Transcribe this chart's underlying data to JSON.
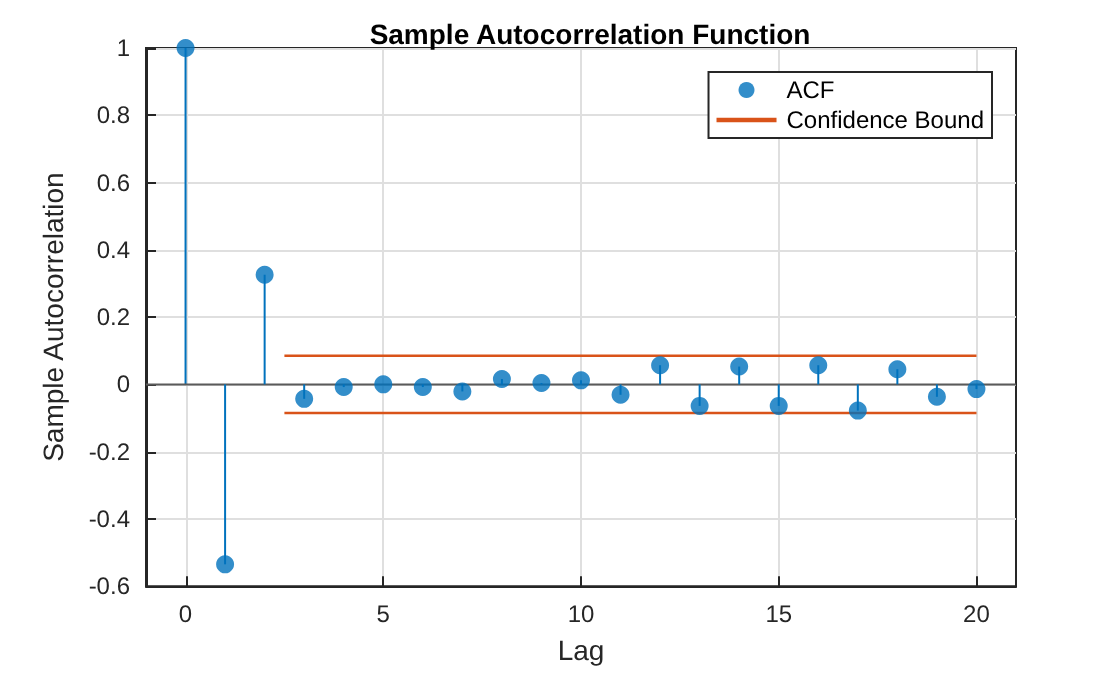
{
  "chart_data": {
    "type": "lollipop",
    "title": "Sample Autocorrelation Function",
    "xlabel": "Lag",
    "ylabel": "Sample Autocorrelation",
    "xlim": [
      -1,
      21
    ],
    "xticks": [
      0,
      5,
      10,
      15,
      20
    ],
    "ylim": [
      -0.6,
      1
    ],
    "yticks": [
      -0.6,
      -0.4,
      -0.2,
      0,
      0.2,
      0.4,
      0.6,
      0.8,
      1
    ],
    "grid": true,
    "legend": "top right",
    "marker": "circle",
    "series": [
      {
        "name": "ACF",
        "color": "#0072bd",
        "x": [
          0,
          1,
          2,
          3,
          4,
          5,
          6,
          7,
          8,
          9,
          10,
          11,
          12,
          13,
          14,
          15,
          16,
          17,
          18,
          19,
          20
        ],
        "values": [
          1,
          -0.535,
          0.326,
          -0.043,
          -0.008,
          0,
          -0.008,
          -0.021,
          0.016,
          0.004,
          0.012,
          -0.031,
          0.057,
          -0.064,
          0.053,
          -0.064,
          0.057,
          -0.078,
          0.045,
          -0.037,
          -0.014
        ]
      },
      {
        "name": "Confidence Bound",
        "type": "line",
        "color": "#d95319",
        "marker": "none",
        "x": [
          2.5,
          20
        ],
        "values": [
          0.085,
          0.085
        ]
      },
      {
        "type": "line",
        "color": "#d95319",
        "marker": "none",
        "x": [
          2.5,
          20
        ],
        "values": [
          -0.085,
          -0.085
        ]
      }
    ]
  }
}
